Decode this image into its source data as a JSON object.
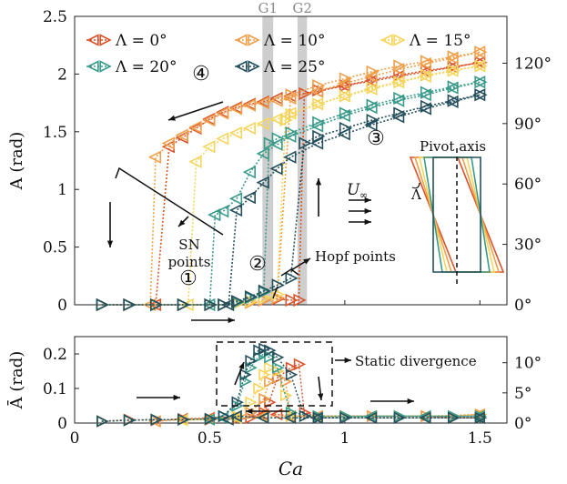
{
  "chart_data": [
    {
      "panel": "top",
      "type": "line",
      "marker": "triangle-left (decreasing Ca), triangle-right (increasing Ca)",
      "ylabel": "A  (rad)",
      "ylim": [
        0,
        2.5
      ],
      "yticks": [
        "0",
        "0.5",
        "1",
        "1.5",
        "2",
        "2.5"
      ],
      "xlim": [
        0,
        1.6
      ],
      "right_axis": {
        "ylim": [
          0,
          2.5
        ],
        "ticks": [
          {
            "v": 0,
            "label": "0°"
          },
          {
            "v": 0.5236,
            "label": "30°"
          },
          {
            "v": 1.0472,
            "label": "60°"
          },
          {
            "v": 1.5708,
            "label": "90°"
          },
          {
            "v": 2.0944,
            "label": "120°"
          }
        ]
      },
      "legend": {
        "placement": "top-left",
        "ncol": 3
      },
      "gaps": [
        {
          "label": "G1",
          "x": [
            0.695,
            0.735
          ]
        },
        {
          "label": "G2",
          "x": [
            0.825,
            0.86
          ]
        }
      ],
      "annotations": {
        "circled": [
          "①",
          "②",
          "③",
          "④"
        ],
        "sn": "SN\npoints",
        "hopf": "Hopf points",
        "pivot": "Pivot axis",
        "u_inf": "U",
        "u_inf_sub": "∞",
        "lambda": "Λ"
      },
      "series": [
        {
          "name": "Λ = 0°",
          "color": "#d9532b",
          "up": {
            "x": [
              0.1,
              0.2,
              0.3,
              0.4,
              0.5,
              0.55,
              0.6,
              0.65,
              0.7,
              0.75,
              0.8,
              0.83,
              0.85,
              0.9,
              1.0,
              1.1,
              1.2,
              1.3,
              1.4,
              1.5
            ],
            "y": [
              0,
              0,
              0,
              0,
              0,
              0,
              0.01,
              0.02,
              0.04,
              0.05,
              0.04,
              0.04,
              1.83,
              1.86,
              1.9,
              1.95,
              1.99,
              2.03,
              2.06,
              2.1
            ]
          },
          "down": {
            "x": [
              1.5,
              1.4,
              1.3,
              1.2,
              1.1,
              1.0,
              0.9,
              0.8,
              0.75,
              0.7,
              0.65,
              0.6,
              0.55,
              0.5,
              0.45,
              0.4,
              0.35,
              0.3
            ],
            "y": [
              2.1,
              2.06,
              2.02,
              1.98,
              1.94,
              1.9,
              1.85,
              1.81,
              1.79,
              1.76,
              1.74,
              1.71,
              1.67,
              1.61,
              1.53,
              1.45,
              1.37,
              0
            ]
          }
        },
        {
          "name": "Λ = 10°",
          "color": "#f0a04b",
          "up": {
            "x": [
              0.1,
              0.2,
              0.3,
              0.4,
              0.5,
              0.55,
              0.6,
              0.65,
              0.7,
              0.75,
              0.8,
              0.9,
              1.0,
              1.1,
              1.2,
              1.3,
              1.4,
              1.5
            ],
            "y": [
              0,
              0,
              0,
              0,
              0,
              0,
              0.01,
              0.02,
              0.04,
              0.06,
              1.82,
              1.9,
              1.96,
              2.02,
              2.07,
              2.11,
              2.15,
              2.19
            ]
          },
          "down": {
            "x": [
              1.5,
              1.4,
              1.3,
              1.2,
              1.1,
              1.0,
              0.9,
              0.8,
              0.75,
              0.7,
              0.65,
              0.6,
              0.55,
              0.5,
              0.45,
              0.4,
              0.35,
              0.3,
              0.28
            ],
            "y": [
              2.19,
              2.14,
              2.09,
              2.04,
              1.98,
              1.92,
              1.85,
              1.79,
              1.77,
              1.75,
              1.73,
              1.7,
              1.66,
              1.6,
              1.54,
              1.47,
              1.4,
              1.28,
              0
            ]
          }
        },
        {
          "name": "Λ = 15°",
          "color": "#f6d55c",
          "up": {
            "x": [
              0.1,
              0.2,
              0.3,
              0.4,
              0.5,
              0.55,
              0.6,
              0.65,
              0.7,
              0.75,
              0.78,
              0.8,
              0.9,
              1.0,
              1.1,
              1.2,
              1.3,
              1.4,
              1.5
            ],
            "y": [
              0,
              0,
              0,
              0,
              0,
              0,
              0.01,
              0.03,
              0.06,
              0.09,
              1.6,
              1.65,
              1.74,
              1.81,
              1.88,
              1.93,
              1.99,
              2.03,
              2.07
            ]
          },
          "down": {
            "x": [
              1.5,
              1.4,
              1.3,
              1.2,
              1.1,
              1.0,
              0.9,
              0.8,
              0.75,
              0.7,
              0.65,
              0.6,
              0.55,
              0.5,
              0.45,
              0.42
            ],
            "y": [
              2.07,
              2.03,
              1.98,
              1.93,
              1.87,
              1.81,
              1.74,
              1.66,
              1.61,
              1.57,
              1.53,
              1.49,
              1.44,
              1.37,
              1.24,
              0
            ]
          }
        },
        {
          "name": "Λ = 20°",
          "color": "#3a9a8a",
          "up": {
            "x": [
              0.1,
              0.2,
              0.3,
              0.4,
              0.5,
              0.55,
              0.6,
              0.65,
              0.7,
              0.72,
              0.75,
              0.8,
              0.9,
              1.0,
              1.1,
              1.2,
              1.3,
              1.4,
              1.5
            ],
            "y": [
              0,
              0,
              0,
              0,
              0,
              0,
              0.02,
              0.06,
              0.11,
              1.4,
              1.44,
              1.49,
              1.58,
              1.66,
              1.73,
              1.79,
              1.84,
              1.89,
              1.93
            ]
          },
          "down": {
            "x": [
              1.5,
              1.4,
              1.3,
              1.2,
              1.1,
              1.0,
              0.9,
              0.8,
              0.75,
              0.7,
              0.65,
              0.6,
              0.55,
              0.52,
              0.5
            ],
            "y": [
              1.93,
              1.88,
              1.82,
              1.77,
              1.71,
              1.64,
              1.55,
              1.46,
              1.39,
              1.31,
              1.15,
              0.92,
              0.81,
              0.78,
              0
            ]
          }
        },
        {
          "name": "Λ = 25°",
          "color": "#244f5c",
          "up": {
            "x": [
              0.1,
              0.2,
              0.3,
              0.4,
              0.5,
              0.55,
              0.6,
              0.65,
              0.7,
              0.75,
              0.8,
              0.85,
              0.9,
              1.0,
              1.1,
              1.2,
              1.3,
              1.4,
              1.5
            ],
            "y": [
              0,
              0,
              0,
              0,
              0,
              0,
              0.03,
              0.07,
              0.12,
              0.17,
              0.23,
              1.4,
              1.46,
              1.53,
              1.6,
              1.66,
              1.72,
              1.77,
              1.82
            ]
          },
          "down": {
            "x": [
              1.5,
              1.4,
              1.3,
              1.2,
              1.1,
              1.0,
              0.9,
              0.8,
              0.75,
              0.7,
              0.65,
              0.6,
              0.57
            ],
            "y": [
              1.82,
              1.76,
              1.7,
              1.63,
              1.56,
              1.48,
              1.4,
              1.28,
              1.18,
              1.06,
              0.93,
              0.82,
              0
            ]
          }
        }
      ]
    },
    {
      "panel": "bottom",
      "type": "line",
      "xlabel": "Ca",
      "xlim": [
        0,
        1.6
      ],
      "xticks": [
        "0",
        "0.5",
        "1",
        "1.5"
      ],
      "ylabel": "Ā  (rad)",
      "ylim": [
        0,
        0.25
      ],
      "yticks": [
        "0",
        "0.1",
        "0.2"
      ],
      "right_axis": {
        "ylim": [
          0,
          0.25
        ],
        "ticks": [
          {
            "v": 0,
            "label": "0°"
          },
          {
            "v": 0.0873,
            "label": "5°"
          },
          {
            "v": 0.1745,
            "label": "10°"
          }
        ]
      },
      "annotations": {
        "static_divergence": "Static divergence"
      },
      "series": [
        {
          "name": "Λ = 0°",
          "color": "#d9532b",
          "up": {
            "x": [
              0.1,
              0.2,
              0.3,
              0.4,
              0.5,
              0.6,
              0.65,
              0.7,
              0.72,
              0.75,
              0.8,
              0.83,
              0.85,
              0.9,
              1.0,
              1.1,
              1.2,
              1.3,
              1.4,
              1.5
            ],
            "y": [
              0.005,
              0.01,
              0.008,
              0.012,
              0.01,
              0.012,
              0.015,
              0.03,
              0.06,
              0.13,
              0.16,
              0.17,
              0.03,
              0.02,
              0.02,
              0.02,
              0.02,
              0.02,
              0.015,
              0.015
            ]
          },
          "down": {
            "x": [
              1.5,
              1.3,
              1.1,
              0.9,
              0.8,
              0.75,
              0.7,
              0.6,
              0.5,
              0.4,
              0.3
            ],
            "y": [
              0.015,
              0.02,
              0.02,
              0.02,
              0.02,
              0.025,
              0.025,
              0.02,
              0.015,
              0.012,
              0.005
            ]
          }
        },
        {
          "name": "Λ = 10°",
          "color": "#f0a04b",
          "up": {
            "x": [
              0.1,
              0.2,
              0.3,
              0.4,
              0.5,
              0.6,
              0.65,
              0.7,
              0.72,
              0.75,
              0.78,
              0.8,
              0.9,
              1.0,
              1.1,
              1.2,
              1.3,
              1.4,
              1.5
            ],
            "y": [
              0.005,
              0.008,
              0.01,
              0.01,
              0.012,
              0.015,
              0.03,
              0.07,
              0.12,
              0.15,
              0.12,
              0.02,
              0.02,
              0.02,
              0.02,
              0.02,
              0.02,
              0.02,
              0.025
            ]
          },
          "down": {
            "x": [
              1.5,
              1.3,
              1.1,
              0.9,
              0.8,
              0.7,
              0.6,
              0.5,
              0.4,
              0.3
            ],
            "y": [
              0.025,
              0.02,
              0.02,
              0.02,
              0.02,
              0.02,
              0.015,
              0.012,
              0.01,
              0.005
            ]
          }
        },
        {
          "name": "Λ = 15°",
          "color": "#f6d55c",
          "up": {
            "x": [
              0.1,
              0.2,
              0.3,
              0.4,
              0.5,
              0.6,
              0.65,
              0.68,
              0.7,
              0.72,
              0.75,
              0.78,
              0.8,
              0.9,
              1.0,
              1.2,
              1.4,
              1.5
            ],
            "y": [
              0.005,
              0.008,
              0.01,
              0.01,
              0.012,
              0.02,
              0.06,
              0.1,
              0.14,
              0.16,
              0.15,
              0.08,
              0.02,
              0.02,
              0.02,
              0.02,
              0.02,
              0.02
            ]
          },
          "down": {
            "x": [
              1.5,
              1.3,
              1.1,
              0.9,
              0.8,
              0.7,
              0.6,
              0.5,
              0.4
            ],
            "y": [
              0.02,
              0.02,
              0.02,
              0.015,
              0.015,
              0.015,
              0.015,
              0.01,
              0.008
            ]
          }
        },
        {
          "name": "Λ = 20°",
          "color": "#3a9a8a",
          "up": {
            "x": [
              0.1,
              0.2,
              0.3,
              0.4,
              0.5,
              0.55,
              0.6,
              0.63,
              0.65,
              0.68,
              0.7,
              0.72,
              0.75,
              0.8,
              0.9,
              1.0,
              1.2,
              1.4,
              1.5
            ],
            "y": [
              0.005,
              0.008,
              0.01,
              0.01,
              0.012,
              0.02,
              0.05,
              0.12,
              0.16,
              0.19,
              0.2,
              0.19,
              0.16,
              0.03,
              0.02,
              0.02,
              0.02,
              0.02,
              0.02
            ]
          },
          "down": {
            "x": [
              1.5,
              1.3,
              1.1,
              0.9,
              0.8,
              0.7,
              0.6,
              0.55,
              0.5
            ],
            "y": [
              0.02,
              0.02,
              0.02,
              0.015,
              0.015,
              0.015,
              0.02,
              0.015,
              0.01
            ]
          }
        },
        {
          "name": "Λ = 25°",
          "color": "#244f5c",
          "up": {
            "x": [
              0.1,
              0.2,
              0.3,
              0.4,
              0.5,
              0.55,
              0.6,
              0.63,
              0.65,
              0.68,
              0.7,
              0.72,
              0.75,
              0.8,
              0.85,
              0.9,
              1.0,
              1.2,
              1.4,
              1.5
            ],
            "y": [
              0.005,
              0.008,
              0.01,
              0.01,
              0.012,
              0.02,
              0.06,
              0.14,
              0.18,
              0.21,
              0.215,
              0.21,
              0.19,
              0.14,
              0.02,
              0.015,
              0.015,
              0.015,
              0.015,
              0.015
            ]
          },
          "down": {
            "x": [
              1.5,
              1.3,
              1.1,
              0.9,
              0.8,
              0.7,
              0.6,
              0.57
            ],
            "y": [
              0.015,
              0.015,
              0.015,
              0.015,
              0.015,
              0.015,
              0.02,
              0.01
            ]
          }
        }
      ]
    }
  ]
}
